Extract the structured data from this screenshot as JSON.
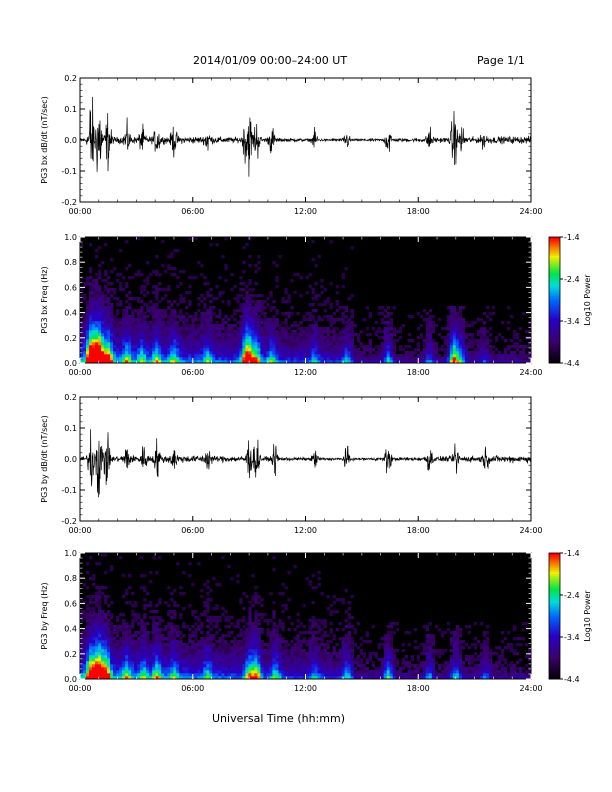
{
  "header": {
    "title": "2014/01/09  00:00–24:00 UT",
    "page": "Page 1/1"
  },
  "footer": {
    "xlabel": "Universal Time (hh:mm)"
  },
  "chart_data": [
    {
      "type": "line",
      "ylabel": "PG3 bx dB/dt (nT/sec)",
      "ylim": [
        -0.2,
        0.2
      ],
      "yticks": [
        "0.2",
        "0.1",
        "0.0",
        "-0.1",
        "-0.2"
      ],
      "xlim": [
        0,
        24
      ],
      "xticks": [
        "00:00",
        "06:00",
        "12:00",
        "18:00",
        "24:00"
      ],
      "bursts": [
        {
          "x": 0.6,
          "amp": 0.2
        },
        {
          "x": 1.0,
          "amp": 0.22
        },
        {
          "x": 1.5,
          "amp": 0.12
        },
        {
          "x": 2.5,
          "amp": 0.06
        },
        {
          "x": 3.3,
          "amp": 0.05
        },
        {
          "x": 4.1,
          "amp": 0.06
        },
        {
          "x": 5.0,
          "amp": 0.06
        },
        {
          "x": 6.8,
          "amp": 0.05
        },
        {
          "x": 8.8,
          "amp": 0.08
        },
        {
          "x": 9.0,
          "amp": 0.13
        },
        {
          "x": 9.4,
          "amp": 0.09
        },
        {
          "x": 10.2,
          "amp": 0.06
        },
        {
          "x": 12.5,
          "amp": 0.04
        },
        {
          "x": 14.2,
          "amp": 0.04
        },
        {
          "x": 16.4,
          "amp": 0.07
        },
        {
          "x": 18.6,
          "amp": 0.05
        },
        {
          "x": 19.9,
          "amp": 0.13
        },
        {
          "x": 20.3,
          "amp": 0.06
        },
        {
          "x": 21.5,
          "amp": 0.03
        }
      ],
      "baseline_noise": 0.01
    },
    {
      "type": "heatmap",
      "ylabel": "PG3 bx Freq (Hz)",
      "ylim": [
        0.0,
        1.0
      ],
      "yticks": [
        "1.0",
        "0.8",
        "0.6",
        "0.4",
        "0.2",
        "0.0"
      ],
      "xlim": [
        0,
        24
      ],
      "xticks": [
        "00:00",
        "06:00",
        "12:00",
        "18:00",
        "24:00"
      ],
      "colorbar": {
        "label": "Log10 Power",
        "ticks": [
          "-1.4",
          "-2.4",
          "-3.4",
          "-4.4"
        ],
        "range": [
          -4.4,
          -1.4
        ]
      }
    },
    {
      "type": "line",
      "ylabel": "PG3 by dB/dt (nT/sec)",
      "ylim": [
        -0.2,
        0.2
      ],
      "yticks": [
        "0.2",
        "0.1",
        "0.0",
        "-0.1",
        "-0.2"
      ],
      "xlim": [
        0,
        24
      ],
      "xticks": [
        "00:00",
        "06:00",
        "12:00",
        "18:00",
        "24:00"
      ],
      "bursts": [
        {
          "x": 0.6,
          "amp": 0.14
        },
        {
          "x": 1.0,
          "amp": 0.18
        },
        {
          "x": 1.4,
          "amp": 0.12
        },
        {
          "x": 2.5,
          "amp": 0.06
        },
        {
          "x": 3.4,
          "amp": 0.05
        },
        {
          "x": 4.1,
          "amp": 0.07
        },
        {
          "x": 5.0,
          "amp": 0.05
        },
        {
          "x": 6.8,
          "amp": 0.05
        },
        {
          "x": 9.0,
          "amp": 0.09
        },
        {
          "x": 9.4,
          "amp": 0.1
        },
        {
          "x": 10.4,
          "amp": 0.06
        },
        {
          "x": 12.5,
          "amp": 0.04
        },
        {
          "x": 14.2,
          "amp": 0.05
        },
        {
          "x": 16.4,
          "amp": 0.08
        },
        {
          "x": 18.6,
          "amp": 0.06
        },
        {
          "x": 20.0,
          "amp": 0.06
        },
        {
          "x": 21.6,
          "amp": 0.04
        }
      ],
      "baseline_noise": 0.01
    },
    {
      "type": "heatmap",
      "ylabel": "PG3 by Freq (Hz)",
      "ylim": [
        0.0,
        1.0
      ],
      "yticks": [
        "1.0",
        "0.8",
        "0.6",
        "0.4",
        "0.2",
        "0.0"
      ],
      "xlim": [
        0,
        24
      ],
      "xticks": [
        "00:00",
        "06:00",
        "12:00",
        "18:00",
        "24:00"
      ],
      "colorbar": {
        "label": "Log10 Power",
        "ticks": [
          "-1.4",
          "-2.4",
          "-3.4",
          "-4.4"
        ],
        "range": [
          -4.4,
          -1.4
        ]
      }
    }
  ]
}
